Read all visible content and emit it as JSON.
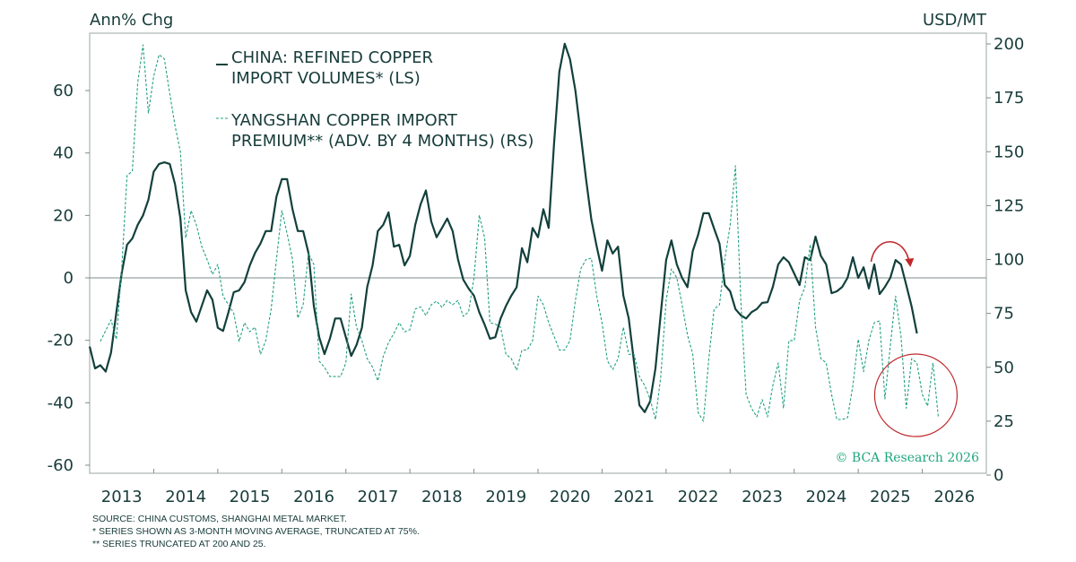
{
  "chart_data": {
    "type": "line",
    "left_axis_label": "Ann% Chg",
    "right_axis_label": "USD/MT",
    "left_ylim": [
      -63,
      78
    ],
    "right_ylim": [
      0,
      205
    ],
    "left_ticks": [
      60,
      40,
      20,
      0,
      -20,
      -40,
      -60
    ],
    "right_ticks": [
      200,
      175,
      150,
      125,
      100,
      75,
      50,
      25,
      0
    ],
    "x_range": [
      2013,
      2027
    ],
    "x_tick_labels": [
      "2013",
      "2014",
      "2015",
      "2016",
      "2017",
      "2018",
      "2019",
      "2020",
      "2021",
      "2022",
      "2023",
      "2024",
      "2025",
      "2026"
    ],
    "series": [
      {
        "name": "CHINA: REFINED COPPER IMPORT VOLUMES* (LS)",
        "legend_line1": "CHINA: REFINED COPPER",
        "legend_line2": "IMPORT VOLUMES* (LS)",
        "axis": "left",
        "style": "solid",
        "color": "#12403c",
        "start_year": 2013,
        "start_month": 1,
        "frequency": "monthly",
        "values": [
          -22,
          -29,
          -28,
          -30,
          -24,
          -11,
          1.5,
          10.6,
          12.6,
          17,
          20,
          25,
          34,
          36.5,
          37,
          36.5,
          30,
          19,
          -4,
          -11,
          -14,
          -9,
          -4,
          -7,
          -16,
          -17,
          -11,
          -4.6,
          -4,
          -1.4,
          4,
          8,
          11,
          15,
          15,
          26,
          31.6,
          31.6,
          22,
          15,
          15,
          8,
          -9,
          -19,
          -24.4,
          -19.5,
          -13,
          -13,
          -19,
          -25,
          -21.5,
          -16,
          -3,
          4,
          15,
          17,
          21,
          10,
          10.6,
          4,
          7,
          17,
          23.5,
          28,
          18,
          13,
          16,
          19,
          15,
          6,
          -0.6,
          -3.4,
          -5.7,
          -11,
          -15,
          -19.5,
          -19,
          -13,
          -9,
          -5.7,
          -3,
          9.5,
          5,
          16,
          13,
          22,
          16,
          43,
          66,
          75,
          70,
          60,
          46,
          31.6,
          18.7,
          10,
          2.3,
          12,
          7.8,
          10,
          -5.7,
          -13,
          -27,
          -40.8,
          -43,
          -39.6,
          -29,
          -11.5,
          5.7,
          12,
          4.3,
          0,
          -3,
          8.6,
          13.8,
          20.7,
          20.7,
          15.8,
          11,
          -2.3,
          -4.3,
          -10,
          -12,
          -13,
          -11,
          -10,
          -8,
          -7.8,
          -2.9,
          4.3,
          6.6,
          5,
          1.4,
          -2.3,
          6.6,
          5.7,
          13.2,
          7,
          4.3,
          -4.9,
          -4.3,
          -2.9,
          0,
          6.6,
          0,
          3.4,
          -3.4,
          4.3,
          -5.2,
          -2.9,
          0,
          5.7,
          4.3,
          -2.3,
          -9.2,
          -17.8
        ]
      },
      {
        "name": "YANGSHAN COPPER IMPORT PREMIUM** (ADV. BY 4 MONTHS) (RS)",
        "legend_line1": "YANGSHAN COPPER IMPORT",
        "legend_line2": "PREMIUM** (ADV. BY 4 MONTHS) (RS)",
        "axis": "right",
        "style": "dashed",
        "color": "#22a083",
        "start_year": 2013,
        "start_month": 3,
        "frequency": "monthly",
        "values": [
          62,
          67,
          72,
          63,
          95.6,
          139,
          141,
          182,
          199.6,
          168,
          185,
          195,
          193,
          177,
          162,
          150,
          110,
          122.7,
          116,
          106,
          100,
          93,
          97.7,
          83,
          79,
          75,
          62,
          70.7,
          66.5,
          68.6,
          56,
          62.4,
          77,
          100,
          122.7,
          112,
          100,
          72.8,
          79,
          103,
          97.7,
          52.8,
          50,
          45.7,
          45.7,
          45.7,
          52,
          84,
          68.6,
          62.4,
          54,
          50,
          43.7,
          55,
          61.5,
          65.7,
          70.7,
          66.5,
          67.4,
          77,
          78,
          74,
          79,
          80.7,
          77.8,
          81,
          79,
          81,
          73.6,
          75.7,
          91.5,
          120.6,
          110,
          70.7,
          70,
          68.6,
          56,
          54,
          48.6,
          58,
          58,
          62.4,
          83,
          79,
          70.7,
          64.4,
          58,
          58,
          62.4,
          81,
          95.6,
          100,
          100.6,
          83,
          70.7,
          53,
          49,
          54,
          68.6,
          56,
          56,
          45.7,
          41.6,
          35.3,
          25.8,
          45.7,
          81,
          95.6,
          91.5,
          79,
          65,
          56,
          29,
          25,
          54,
          77,
          79,
          100,
          116,
          143.5,
          81,
          37.4,
          31,
          27,
          35,
          27,
          41.6,
          52,
          31,
          62.4,
          62.4,
          81,
          87,
          107,
          68.6,
          54,
          52,
          37.4,
          25.8,
          25.8,
          26.6,
          41.6,
          63,
          48,
          62.4,
          70.7,
          71.5,
          35.3,
          60,
          83,
          64.4,
          31,
          54,
          52,
          37.4,
          32,
          52,
          27
        ]
      }
    ],
    "annotations": {
      "arrow": {
        "color": "#c0282d",
        "from_year": 2025.2,
        "to_year": 2025.8
      },
      "circle": {
        "color": "#c0282d",
        "center_year": 2025.9,
        "center_right_value": 37
      }
    },
    "watermark": "© BCA Research 2026",
    "watermark_color": "#1fa67e"
  },
  "footnotes": [
    "SOURCE: CHINA CUSTOMS, SHANGHAI METAL MARKET.",
    "* SERIES SHOWN AS 3-MONTH MOVING AVERAGE, TRUNCATED AT 75%.",
    "** SERIES TRUNCATED AT 200 AND 25."
  ]
}
